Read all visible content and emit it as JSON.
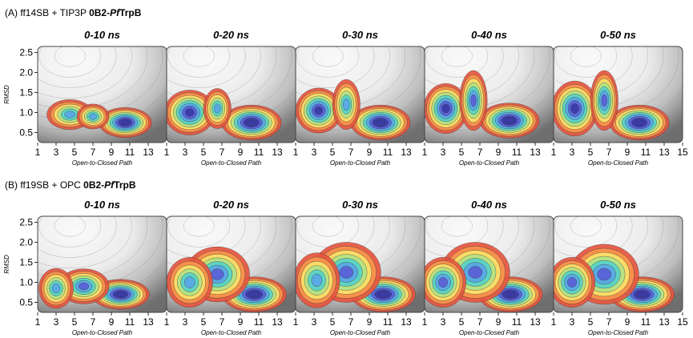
{
  "figure": {
    "rows": [
      {
        "label_prefix": "(A) ff14SB + TIP3P ",
        "label_bold": "0B2-",
        "label_bold_italic": "Pf",
        "label_bold_end": "TrpB",
        "panels": [
          "0-10 ns",
          "0-20 ns",
          "0-30 ns",
          "0-40 ns",
          "0-50 ns"
        ]
      },
      {
        "label_prefix": "(B) ff19SB + OPC ",
        "label_bold": "0B2-",
        "label_bold_italic": "Pf",
        "label_bold_end": "TrpB",
        "panels": [
          "0-10 ns",
          "0-20 ns",
          "0-30 ns",
          "0-40 ns",
          "0-50 ns"
        ]
      }
    ],
    "ylabel": "RMSD",
    "xlabel": "Open-to-Closed Path",
    "yticks": [
      "2.5",
      "2.0",
      "1.5",
      "1.0",
      "0.5"
    ],
    "xticks": [
      "1",
      "3",
      "5",
      "7",
      "9",
      "11",
      "13",
      "15"
    ]
  },
  "chart_data": {
    "type": "heatmap",
    "description_free": true,
    "x_range": [
      1,
      15
    ],
    "y_range": [
      0.25,
      2.65
    ],
    "colormap": [
      "#fbfbfb",
      "#d9d9d9",
      "#e6553f",
      "#f8964c",
      "#fbe36a",
      "#b2e285",
      "#56d3c8",
      "#5aa6e6",
      "#5a5fd6",
      "#3b3aa6"
    ],
    "rows": [
      {
        "panels": [
          {
            "title": "0-10 ns",
            "blobs": [
              [
                10.5,
                0.75,
                2.3,
                0.3,
                1.0
              ],
              [
                4.5,
                0.95,
                2.0,
                0.3,
                0.55
              ],
              [
                7,
                0.9,
                1.4,
                0.25,
                0.45
              ]
            ]
          },
          {
            "title": "0-20 ns",
            "blobs": [
              [
                10.2,
                0.75,
                2.6,
                0.35,
                1.0
              ],
              [
                3.5,
                1.0,
                2.2,
                0.45,
                0.75
              ],
              [
                6.5,
                1.1,
                1.2,
                0.4,
                0.5
              ]
            ]
          },
          {
            "title": "0-30 ns",
            "blobs": [
              [
                10.2,
                0.75,
                2.6,
                0.35,
                1.0
              ],
              [
                3.5,
                1.05,
                2.0,
                0.45,
                0.8
              ],
              [
                6.5,
                1.2,
                1.2,
                0.5,
                0.55
              ]
            ]
          },
          {
            "title": "0-40 ns",
            "blobs": [
              [
                10.2,
                0.8,
                2.6,
                0.35,
                1.0
              ],
              [
                3.3,
                1.1,
                1.9,
                0.5,
                0.85
              ],
              [
                6.3,
                1.3,
                1.2,
                0.6,
                0.6
              ]
            ]
          },
          {
            "title": "0-50 ns",
            "blobs": [
              [
                10.3,
                0.75,
                2.6,
                0.35,
                1.0
              ],
              [
                3.3,
                1.1,
                2.0,
                0.55,
                0.9
              ],
              [
                6.5,
                1.3,
                1.2,
                0.6,
                0.6
              ]
            ]
          }
        ]
      },
      {
        "panels": [
          {
            "title": "0-10 ns",
            "blobs": [
              [
                10.0,
                0.7,
                2.5,
                0.3,
                1.0
              ],
              [
                6,
                0.9,
                2.2,
                0.35,
                0.6
              ],
              [
                3,
                0.85,
                1.5,
                0.4,
                0.45
              ]
            ]
          },
          {
            "title": "0-20 ns",
            "blobs": [
              [
                10.5,
                0.7,
                2.8,
                0.35,
                1.0
              ],
              [
                6.5,
                1.2,
                2.8,
                0.55,
                0.6
              ],
              [
                3.5,
                1.0,
                2.0,
                0.5,
                0.55
              ]
            ]
          },
          {
            "title": "0-30 ns",
            "blobs": [
              [
                10.5,
                0.7,
                2.8,
                0.35,
                1.0
              ],
              [
                6.5,
                1.25,
                3.0,
                0.6,
                0.6
              ],
              [
                3.3,
                1.05,
                2.0,
                0.55,
                0.55
              ]
            ]
          },
          {
            "title": "0-40 ns",
            "blobs": [
              [
                10.3,
                0.7,
                2.8,
                0.35,
                1.0
              ],
              [
                6.5,
                1.25,
                3.0,
                0.6,
                0.65
              ],
              [
                3.0,
                1.0,
                2.0,
                0.5,
                0.6
              ]
            ]
          },
          {
            "title": "0-50 ns",
            "blobs": [
              [
                10.6,
                0.7,
                2.8,
                0.35,
                1.0
              ],
              [
                6.5,
                1.2,
                3.0,
                0.6,
                0.65
              ],
              [
                3.0,
                1.0,
                2.0,
                0.5,
                0.6
              ]
            ]
          }
        ]
      }
    ]
  }
}
